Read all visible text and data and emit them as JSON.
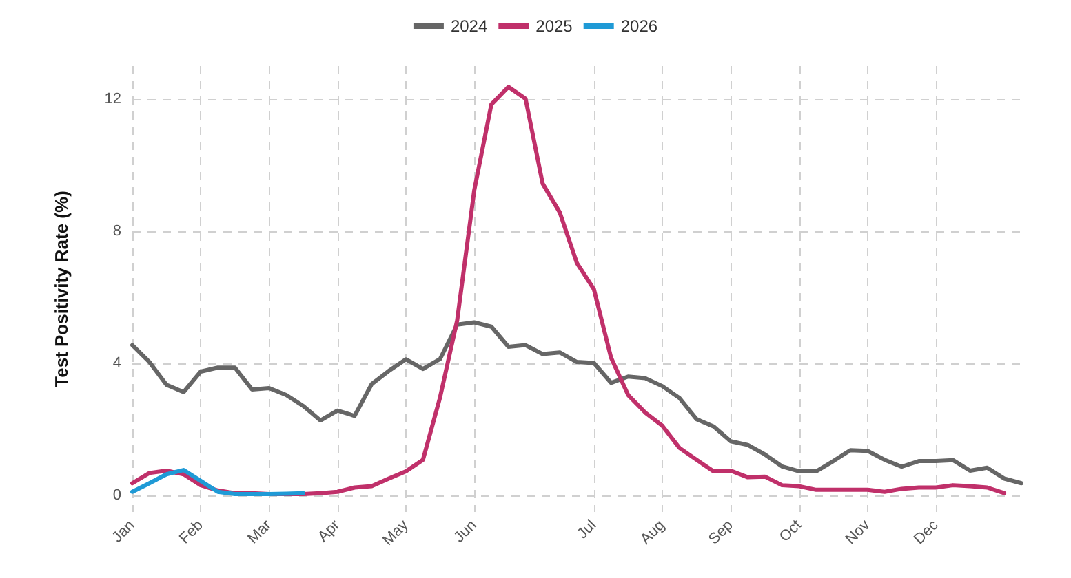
{
  "chart_data": {
    "type": "line",
    "ylabel": "Test Positivity Rate (%)",
    "categories": [
      "Jan",
      null,
      null,
      null,
      "Feb",
      null,
      null,
      null,
      "Mar",
      null,
      null,
      null,
      "Apr",
      null,
      null,
      null,
      "May",
      null,
      null,
      null,
      "Jun",
      null,
      null,
      null,
      null,
      null,
      null,
      "Jul",
      null,
      null,
      null,
      "Aug",
      null,
      null,
      null,
      "Sep",
      null,
      null,
      null,
      "Oct",
      null,
      null,
      null,
      "Nov",
      null,
      null,
      null,
      "Dec",
      null,
      null,
      null,
      null,
      null
    ],
    "series": [
      {
        "name": "2024",
        "color": "#666666",
        "values": [
          4.55,
          4.04,
          3.35,
          3.13,
          3.75,
          3.87,
          3.87,
          3.21,
          3.25,
          3.04,
          2.71,
          2.27,
          2.57,
          2.41,
          3.37,
          3.77,
          4.12,
          3.83,
          4.13,
          5.17,
          5.24,
          5.11,
          4.5,
          4.55,
          4.28,
          4.33,
          4.04,
          4.01,
          3.41,
          3.6,
          3.55,
          3.31,
          2.95,
          2.31,
          2.09,
          1.64,
          1.53,
          1.24,
          0.88,
          0.73,
          0.73,
          1.04,
          1.37,
          1.35,
          1.08,
          0.87,
          1.04,
          1.04,
          1.07,
          0.75,
          0.84,
          0.51,
          0.37
        ]
      },
      {
        "name": "2025",
        "color": "#c0306a",
        "values": [
          0.37,
          0.68,
          0.75,
          0.64,
          0.31,
          0.15,
          0.07,
          0.07,
          0.04,
          0.04,
          0.04,
          0.07,
          0.11,
          0.24,
          0.28,
          0.51,
          0.73,
          1.08,
          2.97,
          5.3,
          9.24,
          11.84,
          12.37,
          12.01,
          9.44,
          8.57,
          7.04,
          6.24,
          4.17,
          3.04,
          2.51,
          2.11,
          1.44,
          1.08,
          0.73,
          0.75,
          0.55,
          0.57,
          0.31,
          0.28,
          0.17,
          0.17,
          0.17,
          0.17,
          0.11,
          0.2,
          0.24,
          0.24,
          0.31,
          0.28,
          0.24,
          0.07,
          null
        ]
      },
      {
        "name": "2026",
        "color": "#1f9ad6",
        "values": [
          0.11,
          0.37,
          0.64,
          0.77,
          0.44,
          0.11,
          0.04,
          0.04,
          0.04,
          0.05,
          0.07,
          null,
          null,
          null,
          null,
          null,
          null,
          null,
          null,
          null,
          null,
          null,
          null,
          null,
          null,
          null,
          null,
          null,
          null,
          null,
          null,
          null,
          null,
          null,
          null,
          null,
          null,
          null,
          null,
          null,
          null,
          null,
          null,
          null,
          null,
          null,
          null,
          null,
          null,
          null,
          null,
          null,
          null
        ]
      }
    ],
    "ylim": [
      -0.5,
      13
    ],
    "yticks": [
      0,
      4,
      8,
      12
    ],
    "grid": true,
    "legend": "top",
    "marker": "none",
    "line_style": "solid"
  }
}
